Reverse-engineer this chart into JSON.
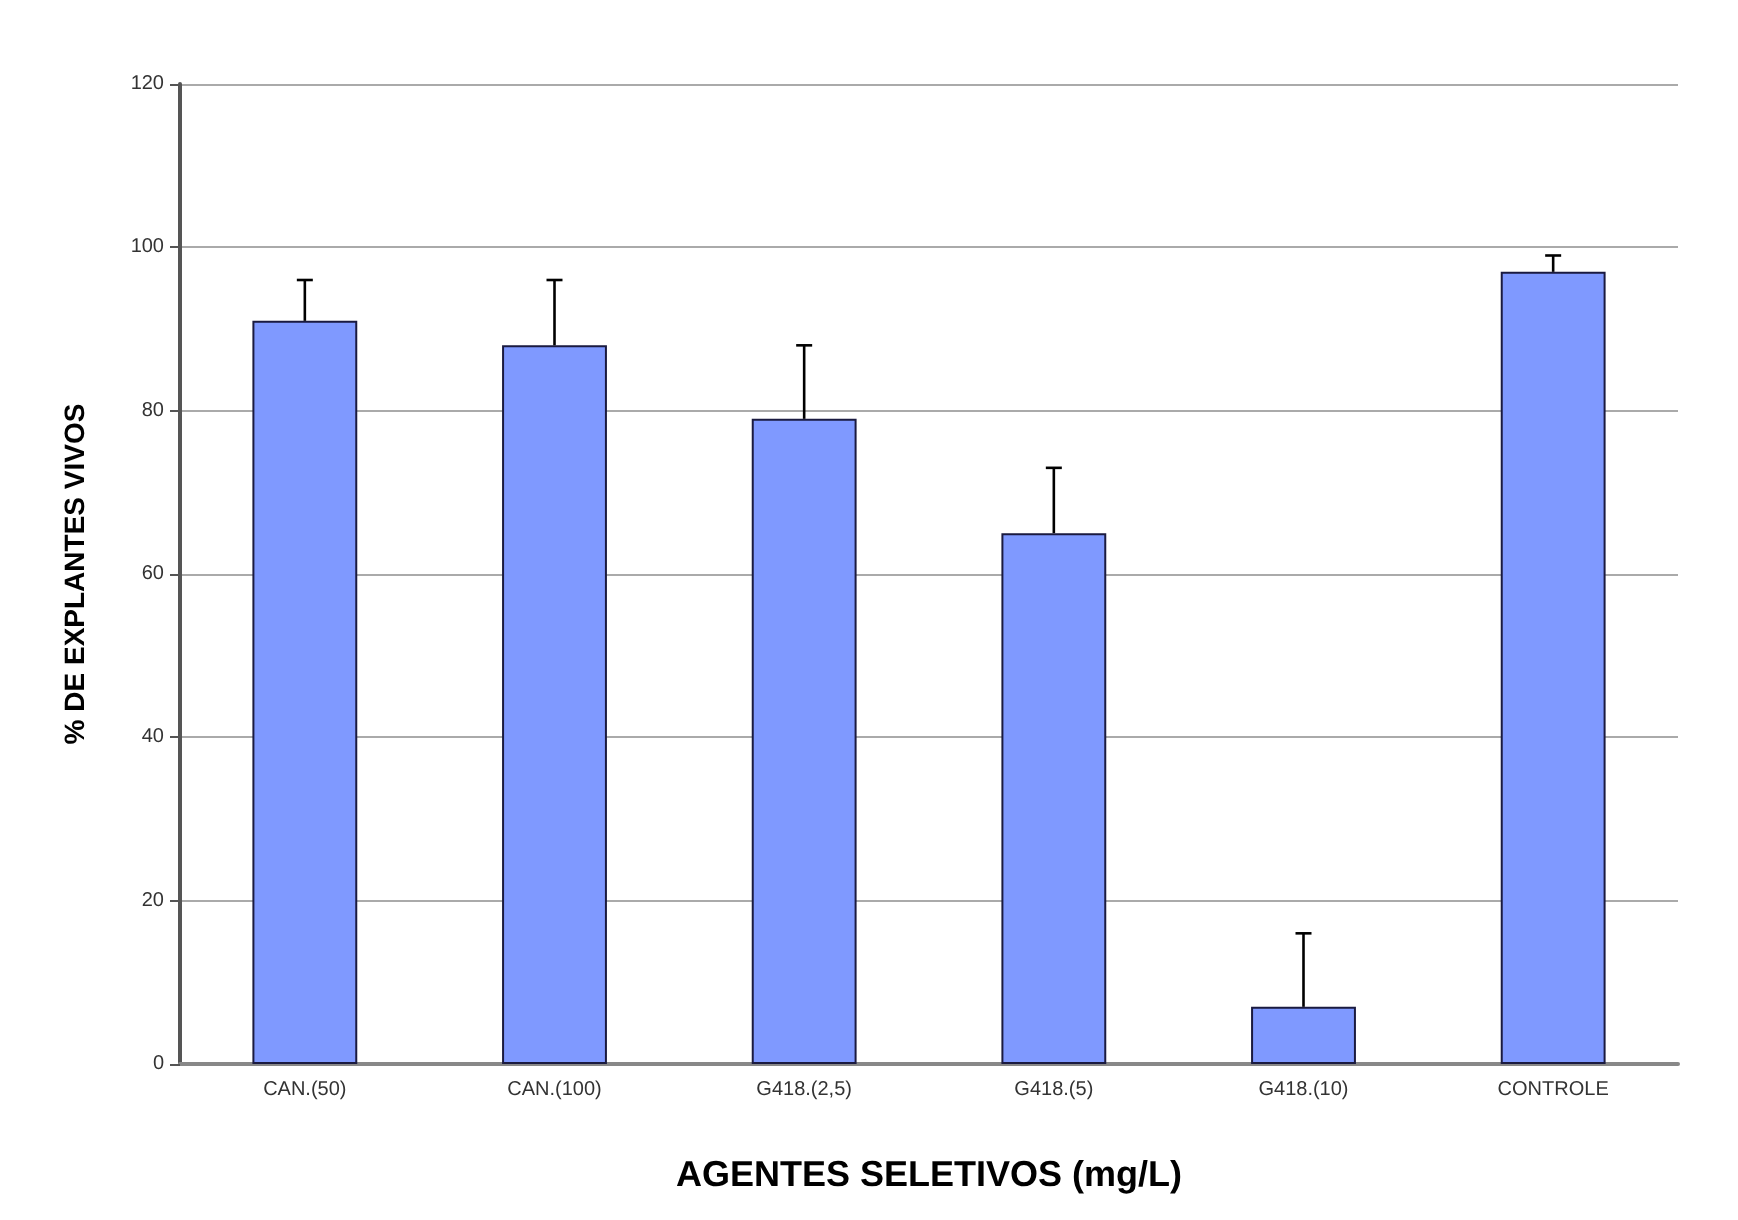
{
  "chart_data": {
    "type": "bar",
    "xlabel": "AGENTES SELETIVOS (mg/L)",
    "ylabel": "% DE EXPLANTES VIVOS",
    "categories": [
      "CAN.(50)",
      "CAN.(100)",
      "G418.(2,5)",
      "G418.(5)",
      "G418.(10)",
      "CONTROLE"
    ],
    "values": [
      91,
      88,
      79,
      65,
      7,
      97
    ],
    "color": "#7f99ff",
    "errors": [
      [
        91,
        96
      ],
      [
        88,
        96
      ],
      [
        79,
        88
      ],
      [
        65,
        73
      ],
      [
        7,
        16
      ],
      [
        97,
        99
      ]
    ],
    "ylim": [
      0,
      120
    ],
    "yticks": [
      0,
      20,
      40,
      60,
      80,
      100,
      120
    ],
    "grid": "y"
  }
}
